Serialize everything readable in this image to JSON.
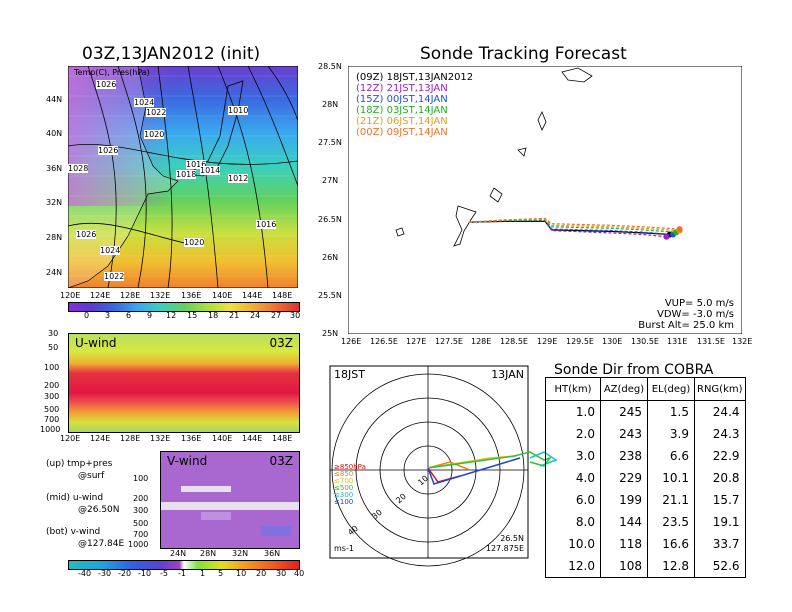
{
  "left_title": "03Z,13JAN2012 (init)",
  "map_panel": {
    "label": "Temp(C), Pres(hPa)",
    "lat_labels": [
      "44N",
      "40N",
      "36N",
      "32N",
      "28N",
      "24N"
    ],
    "lon_labels": [
      "120E",
      "124E",
      "128E",
      "132E",
      "136E",
      "140E",
      "144E",
      "148E"
    ],
    "isobar_labels": [
      "1026",
      "1024",
      "1022",
      "1010",
      "1020",
      "1026",
      "1018",
      "1016",
      "1014",
      "1012",
      "1028",
      "1016",
      "1026",
      "1020",
      "1024",
      "1022"
    ],
    "colorbar": [
      "0",
      "3",
      "6",
      "9",
      "12",
      "15",
      "18",
      "21",
      "24",
      "27",
      "30"
    ]
  },
  "uwind_panel": {
    "label": "U-wind",
    "time": "03Z",
    "y_labels": [
      "30",
      "50",
      "100",
      "200",
      "300",
      "500",
      "700",
      "1000"
    ],
    "x_labels": [
      "120E",
      "124E",
      "128E",
      "132E",
      "136E",
      "140E",
      "144E",
      "148E"
    ]
  },
  "vwind_panel": {
    "label": "V-wind",
    "time": "03Z",
    "y_labels": [
      "100",
      "200",
      "300",
      "500",
      "700",
      "1000"
    ],
    "x_labels": [
      "24N",
      "28N",
      "32N",
      "36N"
    ],
    "colorbar": [
      "-40",
      "-30",
      "-20",
      "-10",
      "-5",
      "-1",
      "1",
      "5",
      "10",
      "20",
      "30",
      "40"
    ]
  },
  "legend_notes": [
    {
      "a": "(up) tmp+pres",
      "b": "@surf"
    },
    {
      "a": "(mid) u-wind",
      "b": "@26.50N"
    },
    {
      "a": "(bot) v-wind",
      "b": "@127.84E"
    }
  ],
  "tracking": {
    "title": "Sonde Tracking Forecast",
    "lat_labels": [
      "28.5N",
      "28N",
      "27.5N",
      "27N",
      "26.5N",
      "26N",
      "25.5N",
      "25N"
    ],
    "lon_labels": [
      "126E",
      "126.5E",
      "127E",
      "127.5E",
      "128E",
      "128.5E",
      "129E",
      "129.5E",
      "130E",
      "130.5E",
      "131E",
      "131.5E",
      "132E"
    ],
    "launches": [
      {
        "utc": "(09Z)",
        "jst": "18JST,13JAN2012",
        "color": "#000000"
      },
      {
        "utc": "(12Z)",
        "jst": "21JST,13JAN",
        "color": "#a020c0"
      },
      {
        "utc": "(15Z)",
        "jst": "00JST,14JAN",
        "color": "#2050e0"
      },
      {
        "utc": "(18Z)",
        "jst": "03JST,14JAN",
        "color": "#20b020"
      },
      {
        "utc": "(21Z)",
        "jst": "06JST,14JAN",
        "color": "#e0a020"
      },
      {
        "utc": "(00Z)",
        "jst": "09JST,14JAN",
        "color": "#f07020"
      }
    ],
    "params": [
      "VUP= 5.0 m/s",
      "VDW= -3.0 m/s",
      "Burst Alt= 25.0 km"
    ]
  },
  "polar": {
    "time_left": "18JST",
    "date_right": "13JAN",
    "ring_labels": [
      "10",
      "20",
      "30",
      "40"
    ],
    "levels": [
      {
        "label": "≥850hPa",
        "color": "#e01010"
      },
      {
        "label": "≤850",
        "color": "#f08020"
      },
      {
        "label": "≤700",
        "color": "#e0c020"
      },
      {
        "label": "≤500",
        "color": "#30c030"
      },
      {
        "label": "≤300",
        "color": "#20c0c0"
      },
      {
        "label": "≤100",
        "color": "#2040e0"
      }
    ],
    "units": "ms-1",
    "loc_lat": "26.5N",
    "loc_lon": "127.875E"
  },
  "sonde_dir": {
    "title": "Sonde Dir from COBRA",
    "headers": [
      "HT(km)",
      "AZ(deg)",
      "EL(deg)",
      "RNG(km)"
    ],
    "rows": [
      [
        "1.0",
        "245",
        "1.5",
        "24.4"
      ],
      [
        "2.0",
        "243",
        "3.9",
        "24.3"
      ],
      [
        "3.0",
        "238",
        "6.6",
        "22.9"
      ],
      [
        "4.0",
        "229",
        "10.1",
        "20.8"
      ],
      [
        "6.0",
        "199",
        "21.1",
        "15.7"
      ],
      [
        "8.0",
        "144",
        "23.5",
        "19.1"
      ],
      [
        "10.0",
        "118",
        "16.6",
        "33.7"
      ],
      [
        "12.0",
        "108",
        "12.8",
        "52.6"
      ]
    ]
  },
  "chart_data": [
    {
      "type": "line",
      "title": "Sonde Tracking Forecast",
      "xlim": [
        126,
        132
      ],
      "ylim": [
        25,
        28.5
      ],
      "series": [
        {
          "name": "(09Z) 18JST,13JAN2012",
          "x": [
            127.84,
            128.4,
            129.0,
            129.1,
            130.0,
            130.5,
            130.9
          ],
          "y": [
            26.46,
            26.47,
            26.47,
            26.36,
            26.34,
            26.32,
            26.3
          ]
        },
        {
          "name": "(12Z) 21JST,13JAN",
          "x": [
            127.84,
            128.4,
            129.0,
            129.1,
            130.0,
            130.5,
            130.85
          ],
          "y": [
            26.46,
            26.48,
            26.48,
            26.35,
            26.32,
            26.3,
            26.27
          ]
        },
        {
          "name": "(15Z) 00JST,14JAN",
          "x": [
            127.84,
            128.4,
            129.0,
            129.1,
            130.0,
            130.5,
            130.95
          ],
          "y": [
            26.46,
            26.48,
            26.48,
            26.37,
            26.35,
            26.33,
            26.3
          ]
        },
        {
          "name": "(18Z) 03JST,14JAN",
          "x": [
            127.84,
            128.4,
            129.0,
            129.1,
            130.0,
            130.5,
            131.0
          ],
          "y": [
            26.46,
            26.48,
            26.49,
            26.4,
            26.38,
            26.36,
            26.33
          ]
        },
        {
          "name": "(21Z) 06JST,14JAN",
          "x": [
            127.84,
            128.4,
            129.0,
            129.1,
            130.0,
            130.5,
            131.05
          ],
          "y": [
            26.46,
            26.49,
            26.5,
            26.42,
            26.4,
            26.38,
            26.35
          ]
        },
        {
          "name": "(00Z) 09JST,14JAN",
          "x": [
            127.84,
            128.4,
            129.0,
            129.1,
            130.0,
            130.5,
            131.05
          ],
          "y": [
            26.46,
            26.49,
            26.51,
            26.44,
            26.42,
            26.4,
            26.37
          ]
        }
      ]
    },
    {
      "type": "table",
      "title": "Sonde Dir from COBRA",
      "columns": [
        "HT(km)",
        "AZ(deg)",
        "EL(deg)",
        "RNG(km)"
      ],
      "rows": [
        [
          1.0,
          245,
          1.5,
          24.4
        ],
        [
          2.0,
          243,
          3.9,
          24.3
        ],
        [
          3.0,
          238,
          6.6,
          22.9
        ],
        [
          4.0,
          229,
          10.1,
          20.8
        ],
        [
          6.0,
          199,
          21.1,
          15.7
        ],
        [
          8.0,
          144,
          23.5,
          19.1
        ],
        [
          10.0,
          118,
          16.6,
          33.7
        ],
        [
          12.0,
          108,
          12.8,
          52.6
        ]
      ]
    }
  ]
}
